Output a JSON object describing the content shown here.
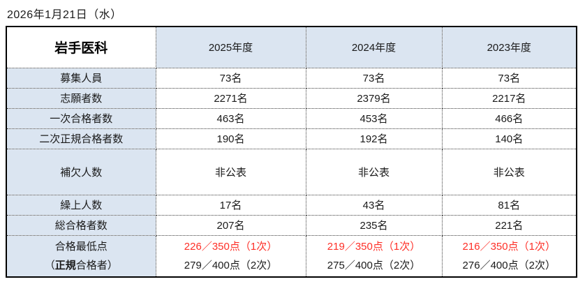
{
  "page_title": "2026年1月21日（水）",
  "colors": {
    "header_fill": "#dbe5f1",
    "score_red": "#fe2f27",
    "border_black": "#000000"
  },
  "table": {
    "corner_label": "岩手医科",
    "columns": [
      "2025年度",
      "2024年度",
      "2023年度"
    ],
    "rows": [
      {
        "label": "募集人員",
        "values": [
          "73名",
          "73名",
          "73名"
        ]
      },
      {
        "label": "志願者数",
        "values": [
          "2271名",
          "2379名",
          "2217名"
        ]
      },
      {
        "label": "一次合格者数",
        "values": [
          "463名",
          "453名",
          "466名"
        ]
      },
      {
        "label": "二次正規合格者数",
        "values": [
          "190名",
          "192名",
          "140名"
        ]
      },
      {
        "label": "補欠人数",
        "values": [
          "非公表",
          "非公表",
          "非公表"
        ]
      },
      {
        "label": "繰上人数",
        "values": [
          "17名",
          "43名",
          "81名"
        ]
      },
      {
        "label": "総合格者数",
        "values": [
          "207名",
          "235名",
          "221名"
        ]
      }
    ],
    "score_row": {
      "label_line1": "合格最低点",
      "label_line2_open": "（",
      "label_line2_bold": "正規",
      "label_line2_close": "合格者）",
      "line1": [
        "226／350点（1次）",
        "219／350点（1次）",
        "216／350点（1次）"
      ],
      "line2": [
        "279／400点（2次）",
        "275／400点（2次）",
        "276／400点（2次）"
      ]
    }
  }
}
